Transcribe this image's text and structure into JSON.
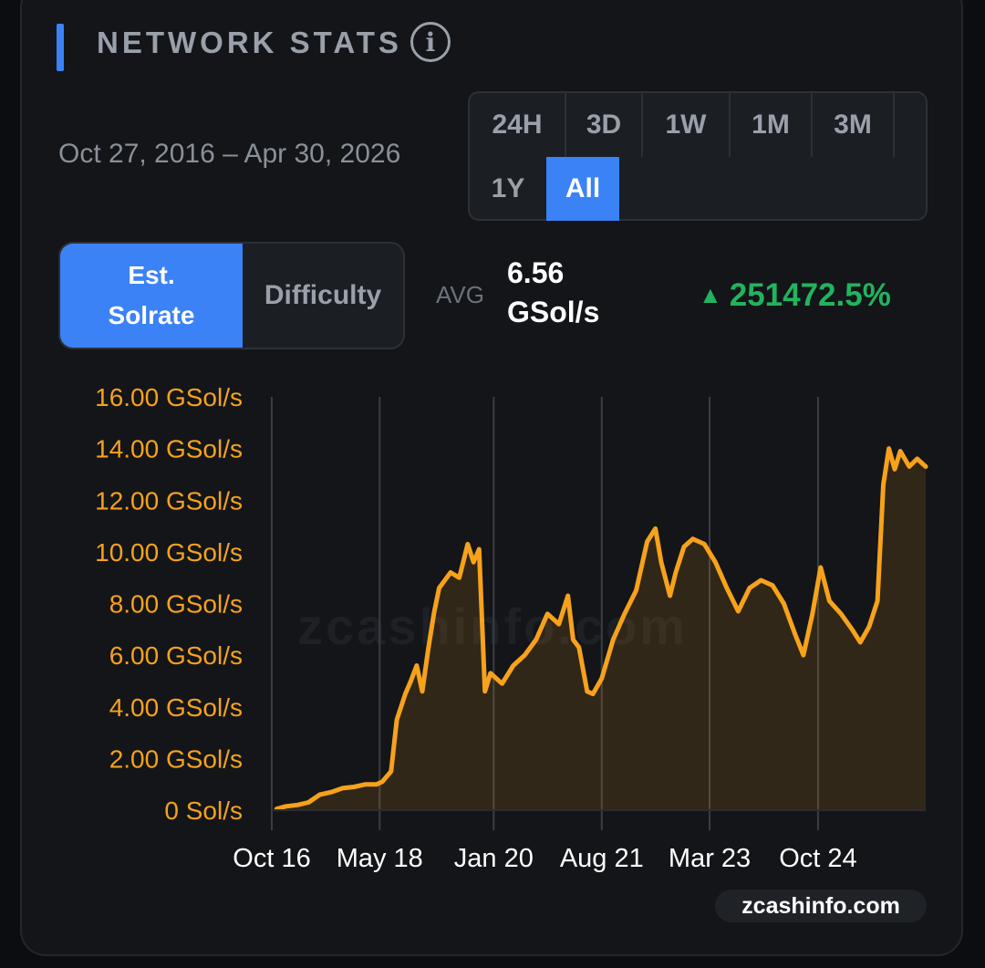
{
  "header": {
    "title": "NETWORK STATS",
    "info_icon": "info-icon"
  },
  "date_range": "Oct 27, 2016 – Apr 30, 2026",
  "range_buttons": [
    "24H",
    "3D",
    "1W",
    "1M",
    "3M",
    "1Y",
    "All"
  ],
  "active_range": "All",
  "metric_toggle": {
    "est_solrate_line1": "Est.",
    "est_solrate_line2": "Solrate",
    "difficulty": "Difficulty",
    "active": "Est. Solrate"
  },
  "stats": {
    "avg_label": "AVG",
    "avg_value_line1": "6.56",
    "avg_value_line2": "GSol/s",
    "change": "251472.5%",
    "change_icon": "triangle-up-icon",
    "change_direction": "up"
  },
  "colors": {
    "accent": "#3b82f6",
    "line": "#f7a21b",
    "positive": "#22b35e"
  },
  "watermark": "zcashinfo.com",
  "chart_data": {
    "type": "area",
    "title": "",
    "xlabel": "",
    "ylabel": "",
    "y_unit": "GSol/s",
    "ylim": [
      0,
      16
    ],
    "yticks": [
      {
        "value": 0,
        "label": "0 Sol/s"
      },
      {
        "value": 2,
        "label": "2.00 GSol/s"
      },
      {
        "value": 4,
        "label": "4.00 GSol/s"
      },
      {
        "value": 6,
        "label": "6.00 GSol/s"
      },
      {
        "value": 8,
        "label": "8.00 GSol/s"
      },
      {
        "value": 10,
        "label": "10.00 GSol/s"
      },
      {
        "value": 12,
        "label": "12.00 GSol/s"
      },
      {
        "value": 14,
        "label": "14.00 GSol/s"
      },
      {
        "value": 16,
        "label": "16.00 GSol/s"
      }
    ],
    "xlim": [
      "2016-10-27",
      "2026-04-30"
    ],
    "xticks": [
      {
        "date": "2016-10-01",
        "label": "Oct 16"
      },
      {
        "date": "2018-05-01",
        "label": "May 18"
      },
      {
        "date": "2020-01-01",
        "label": "Jan 20"
      },
      {
        "date": "2021-08-01",
        "label": "Aug 21"
      },
      {
        "date": "2023-03-01",
        "label": "Mar 23"
      },
      {
        "date": "2024-10-01",
        "label": "Oct 24"
      }
    ],
    "grid": "vertical",
    "series": [
      {
        "points": [
          [
            "2016-10-27",
            0.05
          ],
          [
            "2016-12-15",
            0.15
          ],
          [
            "2017-02-15",
            0.2
          ],
          [
            "2017-04-15",
            0.3
          ],
          [
            "2017-06-15",
            0.6
          ],
          [
            "2017-08-15",
            0.7
          ],
          [
            "2017-10-15",
            0.85
          ],
          [
            "2017-12-15",
            0.9
          ],
          [
            "2018-02-15",
            1.0
          ],
          [
            "2018-04-15",
            1.0
          ],
          [
            "2018-05-15",
            1.1
          ],
          [
            "2018-07-01",
            1.5
          ],
          [
            "2018-08-01",
            3.5
          ],
          [
            "2018-09-15",
            4.5
          ],
          [
            "2018-10-15",
            5.0
          ],
          [
            "2018-11-15",
            5.6
          ],
          [
            "2018-12-15",
            4.6
          ],
          [
            "2019-01-15",
            6.2
          ],
          [
            "2019-02-15",
            7.6
          ],
          [
            "2019-03-15",
            8.6
          ],
          [
            "2019-05-15",
            9.2
          ],
          [
            "2019-07-01",
            9.0
          ],
          [
            "2019-08-15",
            10.3
          ],
          [
            "2019-09-15",
            9.6
          ],
          [
            "2019-10-15",
            10.1
          ],
          [
            "2019-11-15",
            4.6
          ],
          [
            "2019-12-15",
            5.3
          ],
          [
            "2020-02-15",
            4.9
          ],
          [
            "2020-04-15",
            5.6
          ],
          [
            "2020-06-15",
            6.0
          ],
          [
            "2020-08-15",
            6.6
          ],
          [
            "2020-10-15",
            7.6
          ],
          [
            "2020-12-15",
            7.2
          ],
          [
            "2021-02-01",
            8.3
          ],
          [
            "2021-03-01",
            6.6
          ],
          [
            "2021-04-01",
            6.3
          ],
          [
            "2021-05-15",
            4.6
          ],
          [
            "2021-06-15",
            4.5
          ],
          [
            "2021-08-01",
            5.1
          ],
          [
            "2021-10-01",
            6.6
          ],
          [
            "2021-12-01",
            7.6
          ],
          [
            "2022-02-01",
            8.5
          ],
          [
            "2022-04-01",
            10.4
          ],
          [
            "2022-05-15",
            10.9
          ],
          [
            "2022-06-15",
            9.6
          ],
          [
            "2022-08-01",
            8.3
          ],
          [
            "2022-09-01",
            9.2
          ],
          [
            "2022-10-15",
            10.2
          ],
          [
            "2022-12-01",
            10.5
          ],
          [
            "2023-02-01",
            10.3
          ],
          [
            "2023-04-01",
            9.6
          ],
          [
            "2023-06-01",
            8.6
          ],
          [
            "2023-08-01",
            7.7
          ],
          [
            "2023-10-01",
            8.6
          ],
          [
            "2023-12-01",
            8.9
          ],
          [
            "2024-02-01",
            8.7
          ],
          [
            "2024-04-01",
            8.0
          ],
          [
            "2024-06-01",
            6.8
          ],
          [
            "2024-07-15",
            6.0
          ],
          [
            "2024-09-01",
            7.6
          ],
          [
            "2024-10-15",
            9.4
          ],
          [
            "2024-12-01",
            8.1
          ],
          [
            "2025-02-01",
            7.6
          ],
          [
            "2025-04-01",
            7.0
          ],
          [
            "2025-05-15",
            6.5
          ],
          [
            "2025-07-01",
            7.1
          ],
          [
            "2025-08-15",
            8.1
          ],
          [
            "2025-09-15",
            12.6
          ],
          [
            "2025-10-15",
            14.0
          ],
          [
            "2025-11-15",
            13.2
          ],
          [
            "2025-12-15",
            13.9
          ],
          [
            "2026-02-01",
            13.3
          ],
          [
            "2026-03-15",
            13.6
          ],
          [
            "2026-04-30",
            13.3
          ]
        ]
      }
    ]
  }
}
